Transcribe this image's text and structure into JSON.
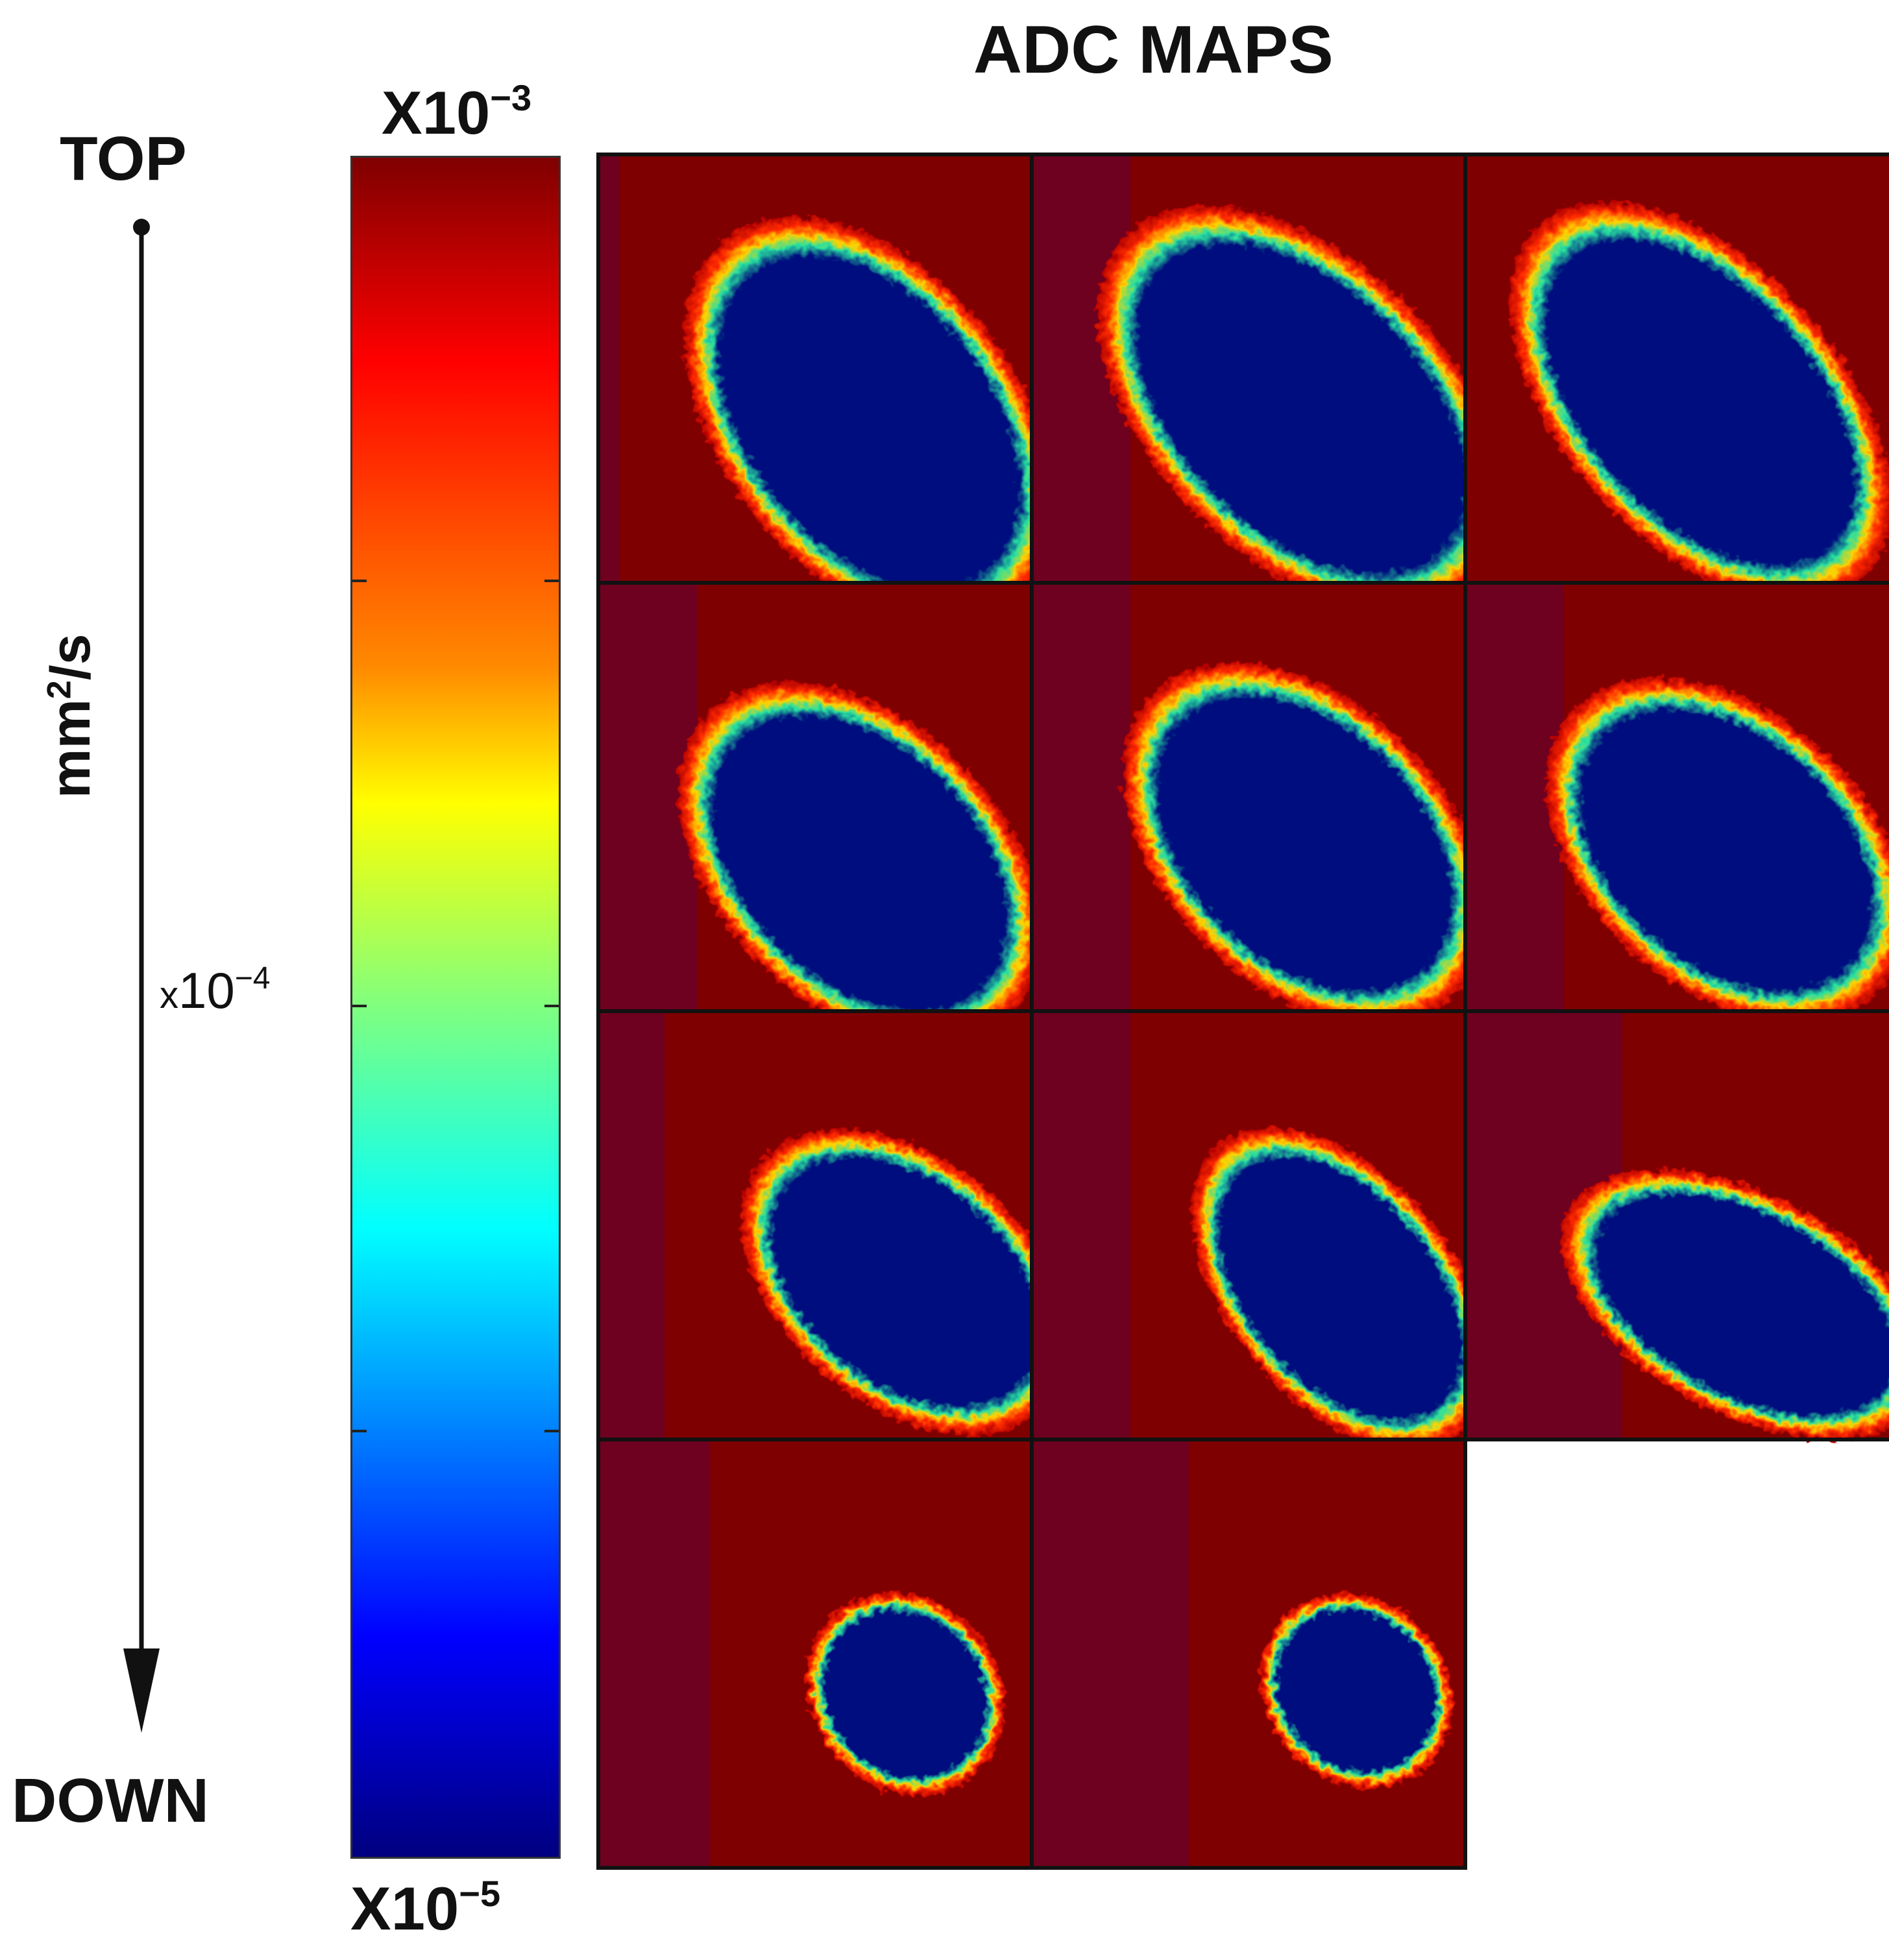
{
  "title": "ADC MAPS",
  "axis": {
    "top_label": "TOP",
    "bottom_label": "DOWN"
  },
  "colorbar": {
    "unit_base": "mm",
    "unit_exp": "2",
    "unit_tail": "/s",
    "max_base": "X10",
    "max_exp": "−3",
    "mid_prefix": "x",
    "mid_base": "10",
    "mid_exp": "−4",
    "min_base": "X10",
    "min_exp": "−5",
    "colormap": "jet"
  },
  "colors": {
    "background": "#7f0000",
    "strip": "#6e0020",
    "tissue": "#00107e",
    "rim_inner": "#28e0a0",
    "rim_mid": "#ffd400",
    "rim_outer": "#ff2a00"
  },
  "maps": {
    "rows": 4,
    "columns": 3,
    "count": 11
  }
}
